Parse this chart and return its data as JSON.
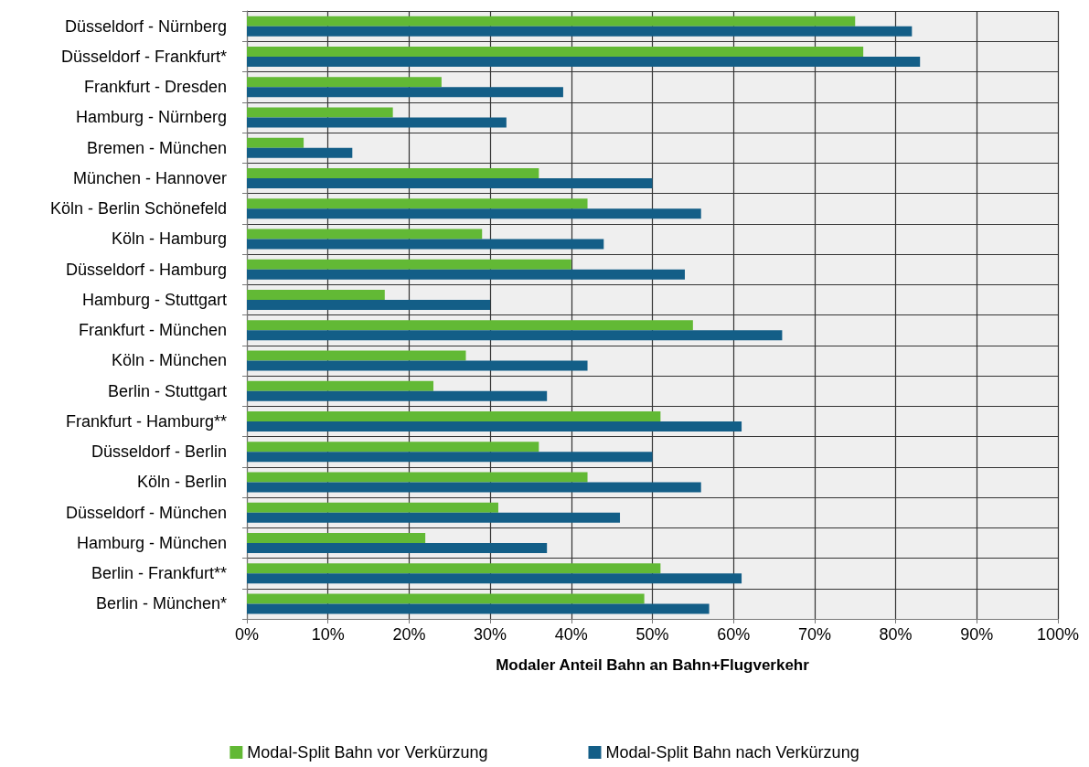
{
  "chart_data": {
    "type": "bar",
    "orientation": "horizontal",
    "xlabel": "Modaler Anteil Bahn an Bahn+Flugverkehr",
    "categories": [
      "Düsseldorf - Nürnberg",
      "Düsseldorf - Frankfurt*",
      "Frankfurt - Dresden",
      "Hamburg - Nürnberg",
      "Bremen - München",
      "München - Hannover",
      "Köln - Berlin Schönefeld",
      "Köln - Hamburg",
      "Düsseldorf - Hamburg",
      "Hamburg - Stuttgart",
      "Frankfurt - München",
      "Köln - München",
      "Berlin - Stuttgart",
      "Frankfurt - Hamburg**",
      "Düsseldorf - Berlin",
      "Köln - Berlin",
      "Düsseldorf - München",
      "Hamburg - München",
      "Berlin - Frankfurt**",
      "Berlin - München*"
    ],
    "series": [
      {
        "name": "Modal-Split Bahn vor Verkürzung",
        "color": "#62b935",
        "values": [
          75,
          76,
          24,
          18,
          7,
          36,
          42,
          29,
          40,
          17,
          55,
          27,
          23,
          51,
          36,
          42,
          31,
          22,
          51,
          49
        ]
      },
      {
        "name": "Modal-Split Bahn nach Verkürzung",
        "color": "#135e87",
        "values": [
          82,
          83,
          39,
          32,
          13,
          50,
          56,
          44,
          54,
          30,
          66,
          42,
          37,
          61,
          50,
          56,
          46,
          37,
          61,
          57
        ]
      }
    ],
    "xlim": [
      0,
      100
    ],
    "xticks": [
      {
        "value": 0,
        "label": "0%"
      },
      {
        "value": 10,
        "label": "10%"
      },
      {
        "value": 20,
        "label": "20%"
      },
      {
        "value": 30,
        "label": "30%"
      },
      {
        "value": 40,
        "label": "40%"
      },
      {
        "value": 50,
        "label": "50%"
      },
      {
        "value": 60,
        "label": "60%"
      },
      {
        "value": 70,
        "label": "70%"
      },
      {
        "value": 80,
        "label": "80%"
      },
      {
        "value": 90,
        "label": "90%"
      },
      {
        "value": 100,
        "label": "100%"
      }
    ],
    "grid": true,
    "legend": "bottom"
  }
}
